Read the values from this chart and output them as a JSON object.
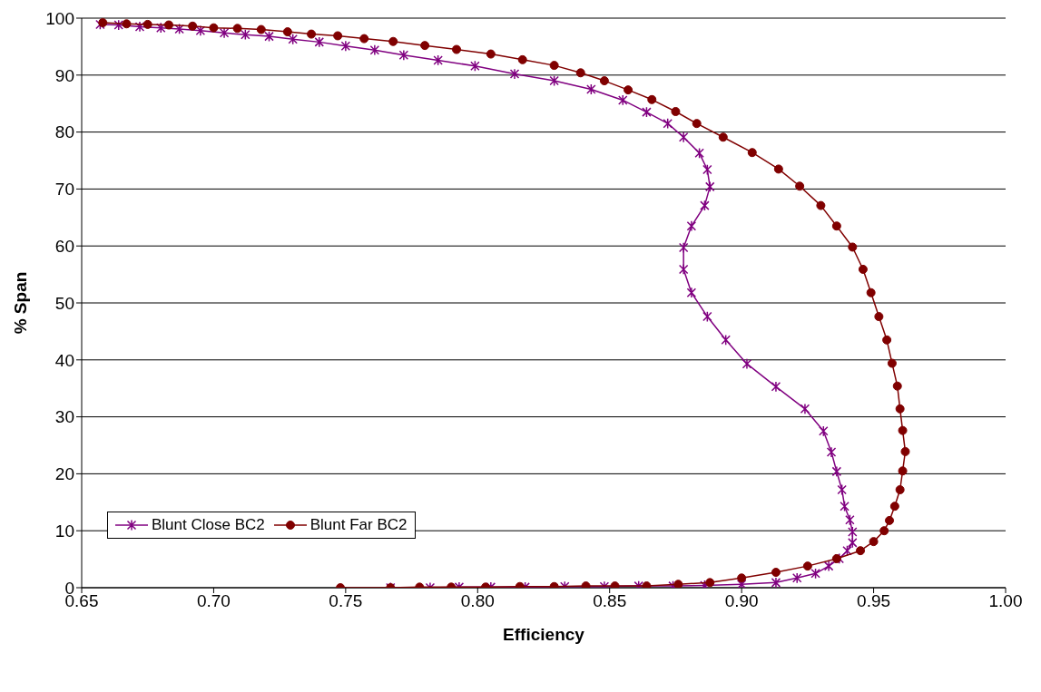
{
  "chart_data": {
    "type": "line",
    "xlabel": "Efficiency",
    "ylabel": "% Span",
    "xlim": [
      0.65,
      1.0
    ],
    "xticks": [
      {
        "value": 0.65,
        "label": "0.65"
      },
      {
        "value": 0.7,
        "label": "0.70"
      },
      {
        "value": 0.75,
        "label": "0.75"
      },
      {
        "value": 0.8,
        "label": "0.80"
      },
      {
        "value": 0.85,
        "label": "0.85"
      },
      {
        "value": 0.9,
        "label": "0.90"
      },
      {
        "value": 0.95,
        "label": "0.95"
      },
      {
        "value": 1.0,
        "label": "1.00"
      }
    ],
    "ylim": [
      0,
      100
    ],
    "yticks": [
      0,
      10,
      20,
      30,
      40,
      50,
      60,
      70,
      80,
      90,
      100
    ],
    "grid": "y",
    "legend": "bottom left",
    "series": [
      {
        "name": "Blunt Close BC2",
        "color": "#800080",
        "marker": "cross",
        "x": [
          0.767,
          0.782,
          0.793,
          0.805,
          0.818,
          0.833,
          0.848,
          0.861,
          0.874,
          0.886,
          0.9,
          0.913,
          0.921,
          0.928,
          0.933,
          0.937,
          0.94,
          0.942,
          0.942,
          0.941,
          0.939,
          0.938,
          0.936,
          0.934,
          0.931,
          0.924,
          0.913,
          0.902,
          0.894,
          0.887,
          0.881,
          0.878,
          0.878,
          0.881,
          0.886,
          0.888,
          0.887,
          0.884,
          0.878,
          0.872,
          0.864,
          0.855,
          0.843,
          0.829,
          0.814,
          0.799,
          0.785,
          0.772,
          0.761,
          0.75,
          0.74,
          0.73,
          0.721,
          0.712,
          0.704,
          0.695,
          0.687,
          0.68,
          0.672,
          0.664,
          0.657
        ],
        "values": [
          0,
          0,
          0.1,
          0.1,
          0.1,
          0.2,
          0.2,
          0.3,
          0.3,
          0.4,
          0.6,
          0.9,
          1.7,
          2.5,
          3.8,
          5.1,
          6.5,
          7.9,
          9.8,
          11.9,
          14.3,
          17.2,
          20.4,
          23.8,
          27.5,
          31.4,
          35.3,
          39.3,
          43.5,
          47.6,
          51.8,
          55.9,
          59.7,
          63.5,
          67.1,
          70.4,
          73.4,
          76.3,
          79.1,
          81.5,
          83.5,
          85.6,
          87.5,
          89.0,
          90.2,
          91.6,
          92.6,
          93.5,
          94.4,
          95.1,
          95.8,
          96.3,
          96.8,
          97.1,
          97.4,
          97.8,
          98.1,
          98.3,
          98.5,
          98.8,
          98.9
        ]
      },
      {
        "name": "Blunt Far BC2",
        "color": "#800000",
        "marker": "circle",
        "x": [
          0.748,
          0.767,
          0.778,
          0.79,
          0.803,
          0.816,
          0.829,
          0.841,
          0.852,
          0.864,
          0.876,
          0.888,
          0.9,
          0.913,
          0.925,
          0.936,
          0.945,
          0.95,
          0.954,
          0.956,
          0.958,
          0.96,
          0.961,
          0.962,
          0.961,
          0.96,
          0.959,
          0.957,
          0.955,
          0.952,
          0.949,
          0.946,
          0.942,
          0.936,
          0.93,
          0.922,
          0.914,
          0.904,
          0.893,
          0.883,
          0.875,
          0.866,
          0.857,
          0.848,
          0.839,
          0.829,
          0.817,
          0.805,
          0.792,
          0.78,
          0.768,
          0.757,
          0.747,
          0.737,
          0.728,
          0.718,
          0.709,
          0.7,
          0.692,
          0.683,
          0.675,
          0.667,
          0.658
        ],
        "values": [
          0,
          0,
          0.1,
          0.1,
          0.1,
          0.2,
          0.2,
          0.3,
          0.3,
          0.3,
          0.6,
          0.9,
          1.7,
          2.7,
          3.8,
          5.1,
          6.5,
          8.1,
          10.0,
          11.8,
          14.3,
          17.2,
          20.5,
          23.9,
          27.6,
          31.4,
          35.4,
          39.4,
          43.5,
          47.6,
          51.8,
          55.9,
          59.8,
          63.5,
          67.1,
          70.5,
          73.5,
          76.4,
          79.1,
          81.5,
          83.6,
          85.7,
          87.4,
          89.0,
          90.4,
          91.7,
          92.7,
          93.7,
          94.5,
          95.2,
          95.9,
          96.4,
          96.9,
          97.2,
          97.6,
          98.0,
          98.2,
          98.3,
          98.6,
          98.8,
          98.9,
          99.0,
          99.2
        ]
      }
    ]
  }
}
